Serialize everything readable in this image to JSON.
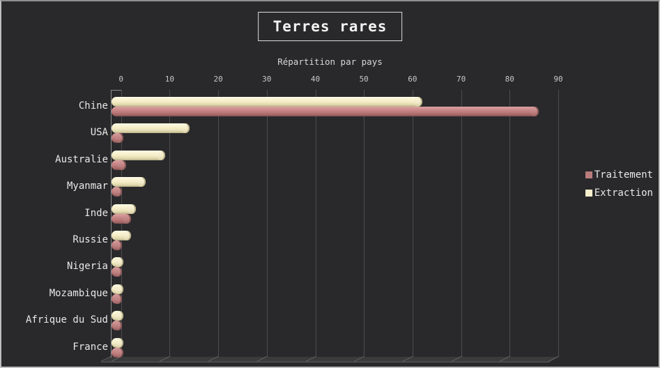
{
  "header": {
    "title": "Terres rares",
    "subtitle": "Répartition par pays"
  },
  "chart_data": {
    "type": "bar",
    "style": "3d-cylinder",
    "orientation": "horizontal",
    "title": "Terres rares",
    "subtitle": "Répartition par pays",
    "categories": [
      "Chine",
      "USA",
      "Australie",
      "Myanmar",
      "Inde",
      "Russie",
      "Nigeria",
      "Mozambique",
      "Afrique du Sud",
      "France"
    ],
    "series": [
      {
        "name": "Traitement",
        "color": "#b97c7c",
        "values": [
          86,
          0.5,
          1,
          0.2,
          2,
          0.2,
          0.2,
          0.2,
          0.2,
          0.5
        ]
      },
      {
        "name": "Extraction",
        "color": "#f6f0cd",
        "values": [
          62,
          14,
          9,
          5,
          3,
          2,
          0.5,
          0.5,
          0.5,
          0.5
        ]
      }
    ],
    "x_ticks": [
      0,
      10,
      20,
      30,
      40,
      50,
      60,
      70,
      80,
      90
    ],
    "xlim": [
      0,
      90
    ],
    "unit": "%",
    "grid": true,
    "legend_position": "right",
    "background_color": "#29292b",
    "gridline_color": "#4d4d4f"
  }
}
